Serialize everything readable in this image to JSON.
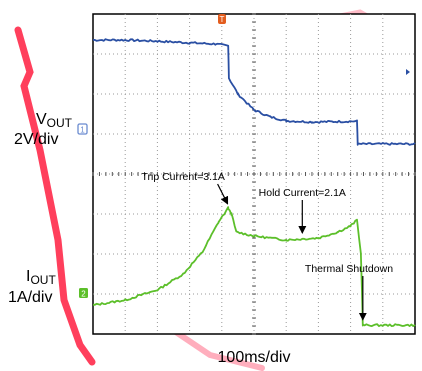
{
  "chart_data": {
    "type": "line",
    "title": "",
    "xlabel": "100ms/div",
    "x_divisions": 10,
    "y_divisions": 8,
    "grid": true,
    "series": [
      {
        "key": "vout",
        "label_main": "V",
        "label_sub": "OUT",
        "scale": "2V/div",
        "color": "#2a4fa3",
        "points": [
          [
            0,
            7.35
          ],
          [
            1,
            7.35
          ],
          [
            2,
            7.32
          ],
          [
            3,
            7.28
          ],
          [
            3.8,
            7.25
          ],
          [
            4.2,
            7.2
          ],
          [
            4.22,
            6.4
          ],
          [
            4.5,
            6.0
          ],
          [
            5,
            5.6
          ],
          [
            5.5,
            5.43
          ],
          [
            6,
            5.33
          ],
          [
            6.8,
            5.3
          ],
          [
            8.2,
            5.32
          ],
          [
            8.22,
            4.75
          ],
          [
            10,
            4.75
          ]
        ]
      },
      {
        "key": "iout",
        "label_main": "I",
        "label_sub": "OUT",
        "scale": "1A/div",
        "color": "#5cbf2a",
        "points": [
          [
            0,
            0.72
          ],
          [
            1,
            0.85
          ],
          [
            2,
            1.1
          ],
          [
            2.8,
            1.5
          ],
          [
            3.4,
            2.05
          ],
          [
            3.9,
            2.8
          ],
          [
            4.2,
            3.15
          ],
          [
            4.3,
            3.0
          ],
          [
            4.45,
            2.55
          ],
          [
            5,
            2.45
          ],
          [
            6,
            2.35
          ],
          [
            7,
            2.4
          ],
          [
            7.6,
            2.55
          ],
          [
            8,
            2.7
          ],
          [
            8.2,
            2.85
          ],
          [
            8.32,
            2.0
          ],
          [
            8.38,
            0.22
          ],
          [
            10,
            0.22
          ]
        ]
      }
    ],
    "annotations": [
      {
        "text": "Trip Current=3.1A",
        "x": 2.8,
        "y": 3.85,
        "tip_x": 4.18,
        "tip_y": 3.18
      },
      {
        "text": "Hold Current=2.1A",
        "x": 6.5,
        "y": 3.45,
        "tip_x": 6.5,
        "tip_y": 2.45
      },
      {
        "text": "Thermal Shutdown",
        "x": 7.95,
        "y": 1.55,
        "tip_x": 8.38,
        "tip_y": 0.28
      }
    ]
  }
}
